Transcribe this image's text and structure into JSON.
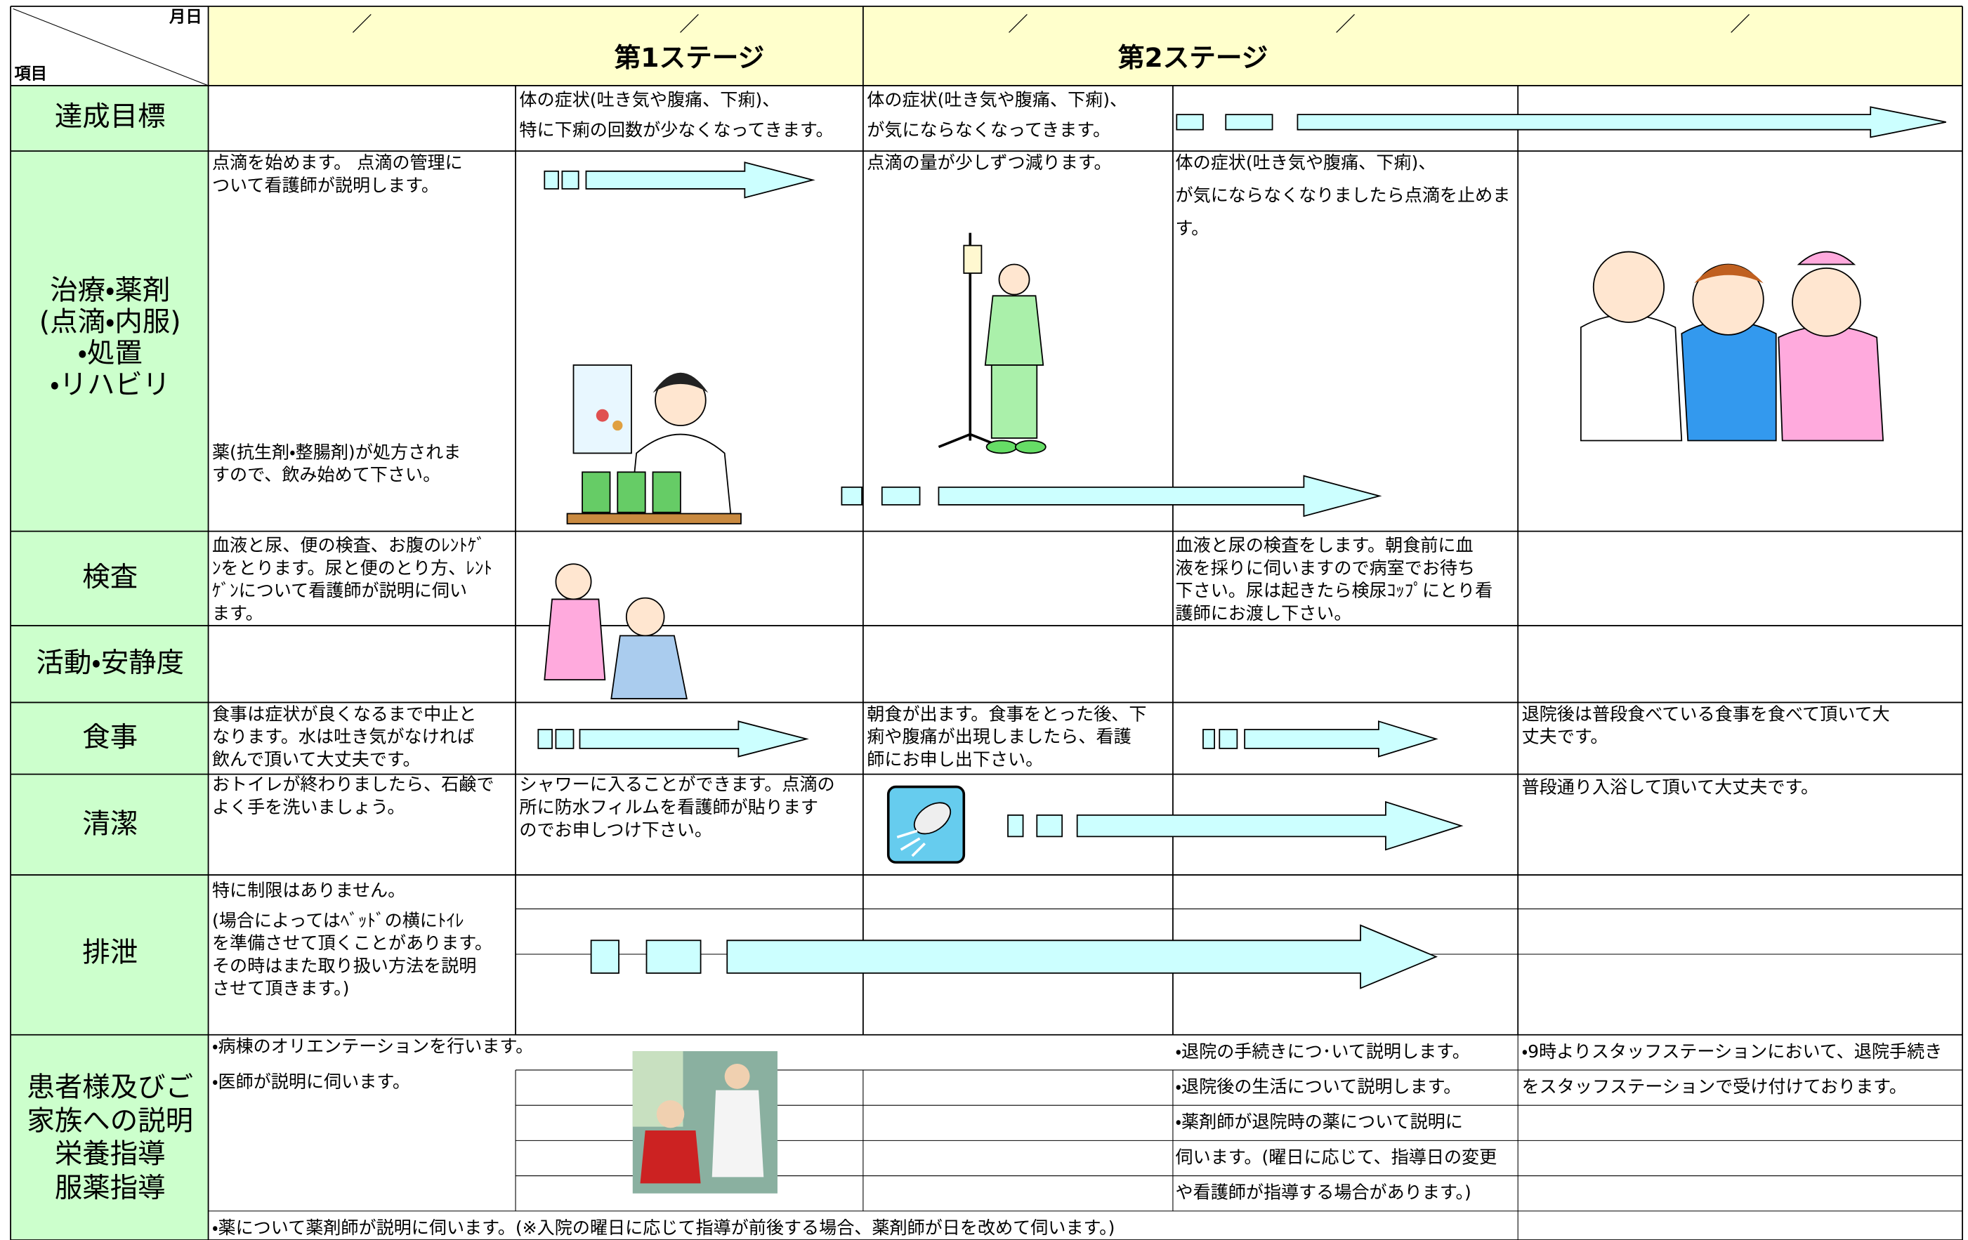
{
  "header": {
    "date_label": "月日",
    "item_label": "項目",
    "date_marks": [
      "／",
      "／",
      "／",
      "／",
      "／"
    ],
    "stages": [
      "第1ステージ",
      "第2ステージ"
    ]
  },
  "rows": [
    {
      "label": [
        "達成目標"
      ],
      "texts": [
        {
          "lines": [
            "体の症状(吐き気や腹痛、下痢)、",
            "特に下痢の回数が少なくなってきます。"
          ]
        },
        {
          "lines": [
            "体の症状(吐き気や腹痛、下痢)、",
            "が気にならなくなってきます。"
          ]
        }
      ]
    },
    {
      "label": [
        "治療・薬剤",
        "(点滴・内服)",
        "・処置",
        "・リハビリ"
      ],
      "texts": [
        {
          "lines": [
            "点滴を始めます。 点滴の管理に",
            "ついて看護師が説明します。"
          ]
        },
        {
          "lines": [
            "薬(抗生剤・整腸剤)が処方されま",
            "すので、飲み始めて下さい。"
          ]
        },
        {
          "lines": [
            "点滴の量が少しずつ減ります。"
          ]
        },
        {
          "lines": [
            "体の症状(吐き気や腹痛、下痢)、",
            "が気にならなくなりましたら点滴を止めま",
            "す。"
          ]
        }
      ]
    },
    {
      "label": [
        "検査"
      ],
      "texts": [
        {
          "lines": [
            "血液と尿、便の検査、お腹のﾚﾝﾄｹﾞ",
            "ﾝをとります。尿と便のとり方、ﾚﾝﾄ",
            "ｹﾞﾝについて看護師が説明に伺い",
            "ます。"
          ]
        },
        {
          "lines": [
            "血液と尿の検査をします。朝食前に血",
            "液を採りに伺いますので病室でお待ち",
            "下さい。尿は起きたら検尿ｺｯﾌﾟにとり看",
            "護師にお渡し下さい。"
          ]
        }
      ]
    },
    {
      "label": [
        "活動・安静度"
      ],
      "texts": []
    },
    {
      "label": [
        "食事"
      ],
      "texts": [
        {
          "lines": [
            "食事は症状が良くなるまで中止と",
            "なります。水は吐き気がなければ",
            "飲んで頂いて大丈夫です。"
          ]
        },
        {
          "lines": [
            "朝食が出ます。食事をとった後、下",
            "痢や腹痛が出現しましたら、看護",
            "師にお申し出下さい。"
          ]
        },
        {
          "lines": [
            "退院後は普段食べている食事を食べて頂いて大",
            "丈夫です。"
          ]
        }
      ]
    },
    {
      "label": [
        "清潔"
      ],
      "texts": [
        {
          "lines": [
            "おトイレが終わりましたら、石鹸で",
            "よく手を洗いましょう。"
          ]
        },
        {
          "lines": [
            "シャワーに入ることができます。点滴の",
            "所に防水フィルムを看護師が貼ります",
            "のでお申しつけ下さい。"
          ]
        },
        {
          "lines": [
            "普段通り入浴して頂いて大丈夫です。"
          ]
        }
      ]
    },
    {
      "label": [
        "排泄"
      ],
      "texts": [
        {
          "lines": [
            "特に制限はありません。"
          ]
        },
        {
          "lines": [
            "(場合によってはﾍﾞｯﾄﾞの横にﾄｲﾚ",
            "を準備させて頂くことがあります。",
            "その時はまた取り扱い方法を説明",
            "させて頂きます。)"
          ]
        }
      ]
    },
    {
      "label": [
        "患者様及びご",
        "家族への説明",
        "栄養指導",
        "服薬指導"
      ],
      "texts": [
        {
          "lines": [
            "・病棟のオリエンテーションを行います。"
          ]
        },
        {
          "lines": [
            "・医師が説明に伺います。"
          ]
        },
        {
          "lines": [
            "・退院の手続きにつ･いて説明します。",
            "・退院後の生活について説明します。",
            "・薬剤師が退院時の薬について説明に",
            "伺います。(曜日に応じて、指導日の変更",
            "や看護師が指導する場合があります。)"
          ]
        },
        {
          "lines": [
            "・9時よりスタッフステーションにおいて、退院手続き",
            "をスタッフステーションで受け付けております。"
          ]
        },
        {
          "lines": [
            "・薬について薬剤師が説明に伺います。(※入院の曜日に応じて指導が前後する場合、薬剤師が日を改めて伺います。)"
          ]
        }
      ]
    }
  ]
}
